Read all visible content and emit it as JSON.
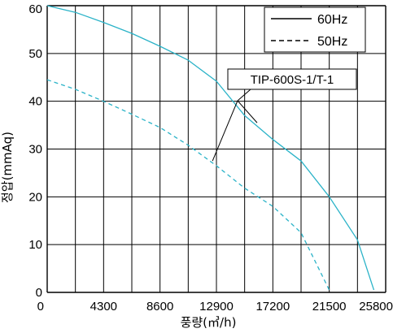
{
  "chart_data": {
    "type": "line",
    "title": "",
    "xlabel": "풍량(㎥/h)",
    "ylabel": "정압(mmAq)",
    "xlim": [
      0,
      25800
    ],
    "ylim": [
      0,
      60
    ],
    "x_ticks": [
      "0",
      "4300",
      "8600",
      "12900",
      "17200",
      "21500",
      "25800"
    ],
    "y_ticks": [
      "0",
      "10",
      "20",
      "30",
      "40",
      "50",
      "60"
    ],
    "grid": true,
    "legend_position": "top-right",
    "colors": {
      "curve": "#2bb3c8",
      "grid": "#000000",
      "text": "#000000"
    },
    "series": [
      {
        "name": "60Hz",
        "style": "solid",
        "points": [
          [
            0,
            60
          ],
          [
            2150,
            58.6
          ],
          [
            4300,
            56.5
          ],
          [
            6450,
            54.2
          ],
          [
            8600,
            51.5
          ],
          [
            10750,
            48.6
          ],
          [
            12900,
            44.2
          ],
          [
            15050,
            37.0
          ],
          [
            17200,
            32.0
          ],
          [
            19350,
            27.5
          ],
          [
            21500,
            20.0
          ],
          [
            23650,
            11.0
          ],
          [
            24900,
            0.5
          ]
        ]
      },
      {
        "name": "50Hz",
        "style": "dashed",
        "points": [
          [
            0,
            44.5
          ],
          [
            2150,
            42.5
          ],
          [
            4300,
            40.0
          ],
          [
            6450,
            37.3
          ],
          [
            8600,
            34.5
          ],
          [
            10750,
            30.8
          ],
          [
            12900,
            26.5
          ],
          [
            15050,
            21.8
          ],
          [
            17200,
            18.0
          ],
          [
            19350,
            12.5
          ],
          [
            21500,
            0.5
          ]
        ]
      }
    ],
    "annotations": [
      {
        "text": "TIP-600S-1/T-1",
        "targets": [
          [
            12600,
            27.5
          ],
          [
            16000,
            35.5
          ]
        ]
      }
    ]
  }
}
